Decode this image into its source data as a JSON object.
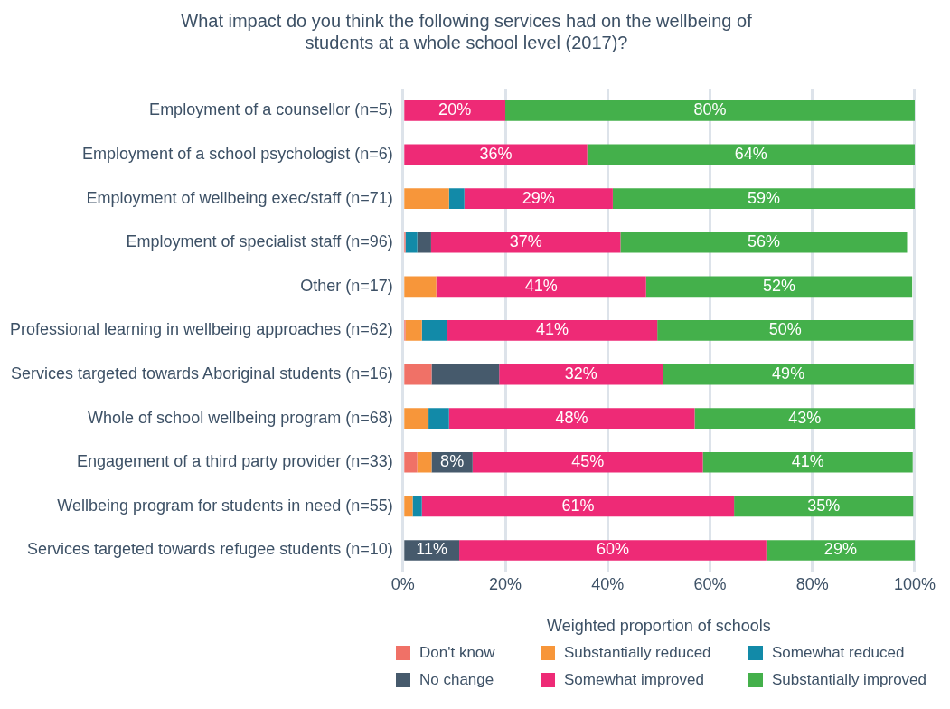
{
  "chart_data": {
    "type": "bar",
    "orientation": "horizontal",
    "stacked": true,
    "title": "What impact do you think the following services had on the wellbeing of students at a whole school level (2017)?",
    "xlabel": "Weighted proportion of schools",
    "categories": [
      "Employment of a counsellor (n=5)",
      "Employment of a school psychologist (n=6)",
      "Employment of wellbeing exec/staff (n=71)",
      "Employment of specialist staff (n=96)",
      "Other (n=17)",
      "Professional learning in wellbeing approaches (n=62)",
      "Services targeted towards Aboriginal students (n=16)",
      "Whole of school wellbeing program (n=68)",
      "Engagement of a third party provider (n=33)",
      "Wellbeing program for students in need (n=55)",
      "Services targeted towards refugee students (n=10)"
    ],
    "series": [
      {
        "name": "Don't know",
        "color": "#f07167",
        "values": [
          null,
          null,
          null,
          0.5,
          null,
          0.5,
          5.6,
          null,
          2.8,
          null,
          null
        ]
      },
      {
        "name": "Substantially reduced",
        "color": "#f7963a",
        "values": [
          null,
          null,
          9,
          null,
          6.5,
          3.2,
          null,
          5,
          2.8,
          1.9,
          null
        ]
      },
      {
        "name": "Somewhat reduced",
        "color": "#128aa8",
        "values": [
          null,
          null,
          3,
          2.3,
          null,
          5,
          null,
          4,
          null,
          1.8,
          null
        ]
      },
      {
        "name": "No change",
        "color": "#465a6c",
        "values": [
          null,
          null,
          null,
          2.7,
          null,
          null,
          13.2,
          null,
          8,
          null,
          11
        ],
        "value_labels": [
          null,
          null,
          null,
          null,
          null,
          null,
          null,
          null,
          "8%",
          null,
          "11%"
        ]
      },
      {
        "name": "Somewhat improved",
        "color": "#ee2a76",
        "values": [
          20,
          36,
          29,
          37,
          41,
          41,
          32,
          48,
          45,
          61,
          60
        ],
        "value_labels": [
          "20%",
          "36%",
          "29%",
          "37%",
          "41%",
          "41%",
          "32%",
          "48%",
          "45%",
          "61%",
          "60%"
        ]
      },
      {
        "name": "Substantially improved",
        "color": "#44b04b",
        "values": [
          80,
          64,
          59,
          56,
          52,
          50,
          49,
          43,
          41,
          35,
          29
        ],
        "value_labels": [
          "80%",
          "64%",
          "59%",
          "56%",
          "52%",
          "50%",
          "49%",
          "43%",
          "41%",
          "35%",
          "29%"
        ]
      }
    ],
    "xlim": [
      0,
      100
    ],
    "xticks": [
      {
        "value": 0,
        "label": "0%"
      },
      {
        "value": 20,
        "label": "20%"
      },
      {
        "value": 40,
        "label": "40%"
      },
      {
        "value": 60,
        "label": "60%"
      },
      {
        "value": 80,
        "label": "80%"
      },
      {
        "value": 100,
        "label": "100%"
      }
    ],
    "grid": "x",
    "legend": "bottom"
  }
}
